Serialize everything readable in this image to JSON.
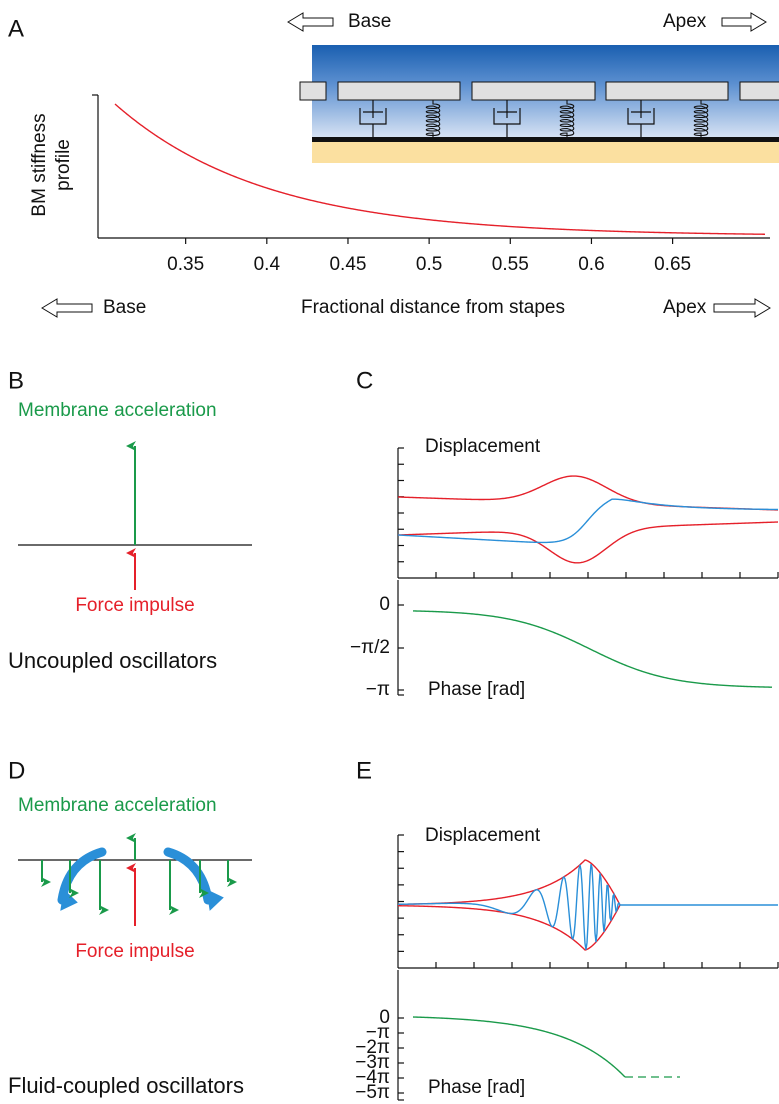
{
  "panel_a": {
    "label": "A",
    "inset_left": "Base",
    "inset_right": "Apex",
    "ylabel": [
      "BM stiffness",
      "profile"
    ],
    "xticks": [
      0.35,
      0.4,
      0.45,
      0.5,
      0.55,
      0.6,
      0.65
    ],
    "xlim": [
      0.296,
      0.71
    ],
    "xlabel": "Fractional distance from stapes",
    "left": "Base",
    "right": "Apex"
  },
  "panel_b": {
    "label": "B",
    "top": "Membrane acceleration",
    "bottom": "Force impulse",
    "caption": "Uncoupled oscillators"
  },
  "panel_c": {
    "label": "C",
    "upper": "Displacement",
    "lower": "Phase [rad]",
    "phase_ticks": [
      "0",
      "−π/2",
      "−π"
    ]
  },
  "panel_d": {
    "label": "D",
    "top": "Membrane acceleration",
    "bottom": "Force impulse",
    "caption": "Fluid-coupled oscillators"
  },
  "panel_e": {
    "label": "E",
    "upper": "Displacement",
    "lower": "Phase [rad]",
    "phase_ticks": [
      "0",
      "−π",
      "−2π",
      "−3π",
      "−4π",
      "−5π"
    ]
  }
}
